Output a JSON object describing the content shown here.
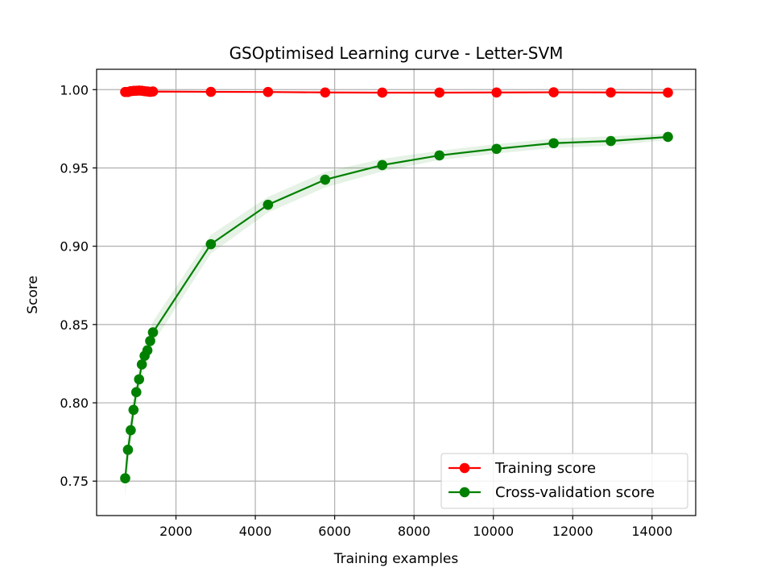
{
  "chart_data": {
    "type": "line",
    "title": "GSOptimised Learning curve - Letter-SVM",
    "xlabel": "Training examples",
    "ylabel": "Score",
    "xlim": [
      0,
      15100
    ],
    "ylim": [
      0.728,
      1.013
    ],
    "xticks": [
      2000,
      4000,
      6000,
      8000,
      10000,
      12000,
      14000
    ],
    "xtick_labels": [
      "2000",
      "4000",
      "6000",
      "8000",
      "10000",
      "12000",
      "14000"
    ],
    "yticks": [
      0.75,
      0.8,
      0.85,
      0.9,
      0.95,
      1.0
    ],
    "ytick_labels": [
      "0.75",
      "0.80",
      "0.85",
      "0.90",
      "0.95",
      "1.00"
    ],
    "grid": true,
    "legend_position": "lower-right",
    "series": [
      {
        "name": "Training score",
        "color": "#ff0000",
        "band_color": "#ff0000",
        "x": [
          720,
          790,
          860,
          930,
          1000,
          1070,
          1140,
          1210,
          1280,
          1350,
          1420,
          2880,
          4320,
          5760,
          7200,
          8640,
          10080,
          11520,
          12960,
          14400
        ],
        "y": [
          0.9985,
          0.9985,
          0.999,
          0.9992,
          0.9993,
          0.9994,
          0.9993,
          0.999,
          0.9988,
          0.9986,
          0.9988,
          0.9986,
          0.9985,
          0.9982,
          0.9981,
          0.9981,
          0.9982,
          0.9983,
          0.9982,
          0.9981
        ],
        "std": [
          0.0008,
          0.0008,
          0.0007,
          0.0007,
          0.0006,
          0.0006,
          0.0006,
          0.0006,
          0.0006,
          0.0006,
          0.0006,
          0.0005,
          0.0005,
          0.0004,
          0.0004,
          0.0004,
          0.0004,
          0.0004,
          0.0004,
          0.0004
        ]
      },
      {
        "name": "Cross-validation score",
        "color": "#008000",
        "band_color": "#008000",
        "x": [
          720,
          790,
          860,
          930,
          1000,
          1070,
          1140,
          1210,
          1280,
          1350,
          1420,
          2880,
          4320,
          5760,
          7200,
          8640,
          10080,
          11520,
          12960,
          14400
        ],
        "y": [
          0.7518,
          0.77,
          0.7825,
          0.7955,
          0.8068,
          0.815,
          0.8245,
          0.83,
          0.8335,
          0.8395,
          0.845,
          0.9013,
          0.9265,
          0.9425,
          0.9518,
          0.958,
          0.9622,
          0.9658,
          0.9672,
          0.9698
        ],
        "std": [
          0.012,
          0.011,
          0.01,
          0.009,
          0.009,
          0.008,
          0.008,
          0.008,
          0.007,
          0.007,
          0.007,
          0.006,
          0.005,
          0.005,
          0.004,
          0.003,
          0.003,
          0.003,
          0.003,
          0.002
        ]
      }
    ]
  }
}
